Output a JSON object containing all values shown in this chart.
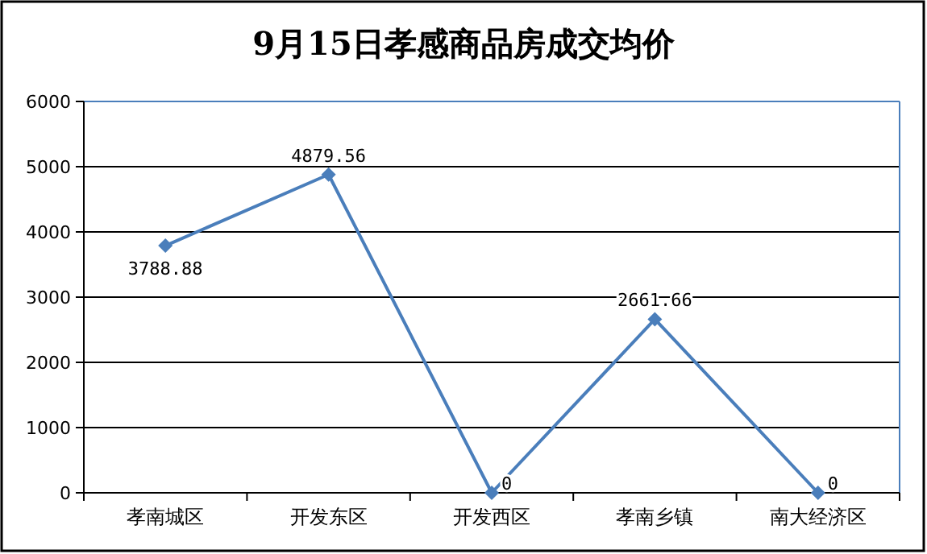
{
  "chart_data": {
    "type": "line",
    "title": "9月15日孝感商品房成交均价",
    "categories": [
      "孝南城区",
      "开发东区",
      "开发西区",
      "孝南乡镇",
      "南大经济区"
    ],
    "series": [
      {
        "color": "#4a7ebb",
        "values": [
          3788.88,
          4879.56,
          0,
          2661.66,
          0
        ]
      }
    ],
    "ylim": [
      0,
      6000
    ],
    "yticks": [
      0,
      1000,
      2000,
      3000,
      4000,
      5000,
      6000
    ],
    "grid": "y",
    "marker": "diamond",
    "line_style": "solid",
    "data_labels": true
  }
}
